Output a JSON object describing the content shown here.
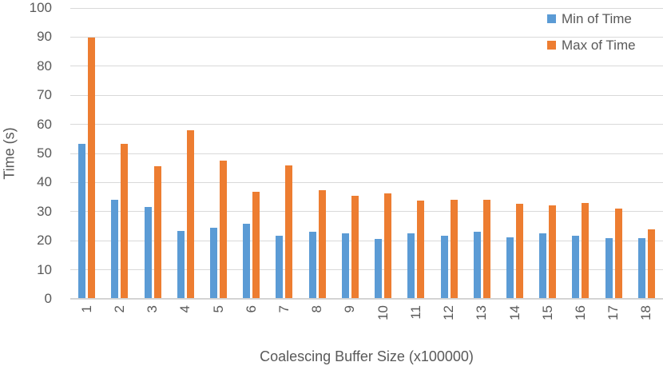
{
  "chart_data": {
    "type": "bar",
    "title": "",
    "xlabel": "Coalescing Buffer Size (x100000)",
    "ylabel": "Time (s)",
    "ylim": [
      0,
      100
    ],
    "ytick_step": 10,
    "grid": true,
    "legend_position": "top-right",
    "categories": [
      "1",
      "2",
      "3",
      "4",
      "5",
      "6",
      "7",
      "8",
      "9",
      "10",
      "11",
      "12",
      "13",
      "14",
      "15",
      "16",
      "17",
      "18"
    ],
    "series": [
      {
        "name": "Min of Time",
        "color": "#5B9BD5",
        "values": [
          53,
          33.8,
          31.3,
          23,
          24.2,
          25.5,
          21.5,
          22.8,
          22.3,
          20.2,
          22.3,
          21.3,
          22.9,
          21,
          22.3,
          21.4,
          20.5,
          20.7
        ]
      },
      {
        "name": "Max of Time",
        "color": "#ED7D31",
        "values": [
          89.5,
          53,
          45.3,
          57.8,
          47.2,
          36.5,
          45.7,
          37.2,
          35.2,
          36.1,
          33.4,
          33.9,
          33.7,
          32.3,
          31.9,
          32.6,
          30.7,
          23.5
        ]
      }
    ],
    "colors": {
      "text": "#595959",
      "gridline": "#D9D9D9",
      "background": "#FFFFFF"
    }
  }
}
